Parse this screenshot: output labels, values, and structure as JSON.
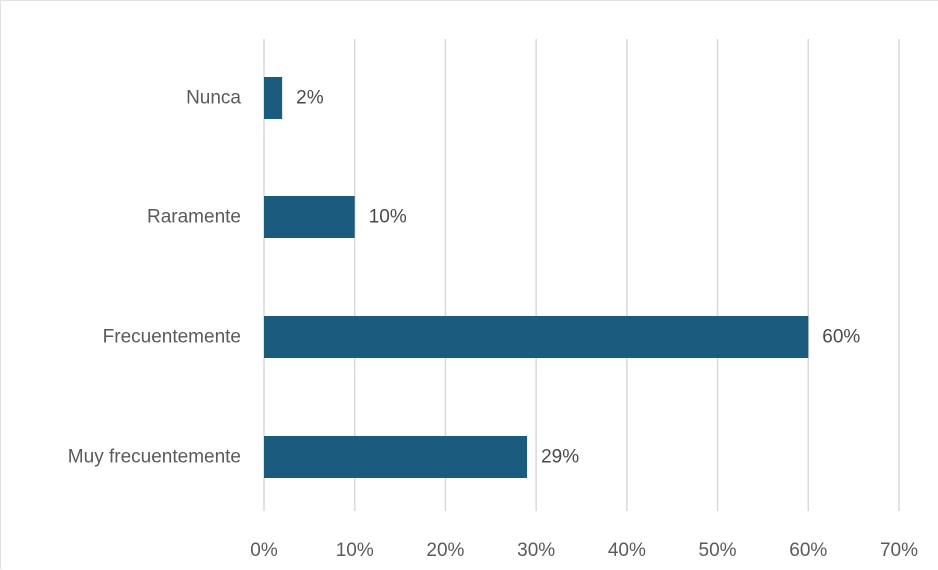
{
  "chart_data": {
    "type": "bar",
    "orientation": "horizontal",
    "categories": [
      "Nunca",
      "Raramente",
      "Frecuentemente",
      "Muy frecuentemente"
    ],
    "values": [
      2,
      10,
      60,
      29
    ],
    "data_labels": [
      "2%",
      "10%",
      "60%",
      "29%"
    ],
    "xlim": [
      0,
      70
    ],
    "x_ticks": [
      0,
      10,
      20,
      30,
      40,
      50,
      60,
      70
    ],
    "x_tick_labels": [
      "0%",
      "10%",
      "20%",
      "30%",
      "40%",
      "50%",
      "60%",
      "70%"
    ],
    "title": "",
    "xlabel": "",
    "ylabel": "",
    "grid": true,
    "bar_color": "#1b5b7e",
    "grid_color": "#d9d9d9"
  }
}
